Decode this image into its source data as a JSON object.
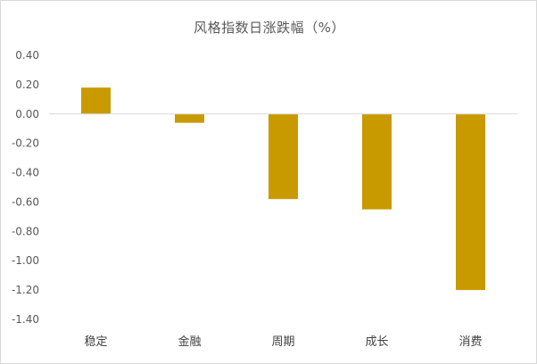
{
  "chart_data": {
    "type": "bar",
    "title": "风格指数日涨跌幅（%）",
    "xlabel": "",
    "ylabel": "",
    "categories": [
      "稳定",
      "金融",
      "周期",
      "成长",
      "消费"
    ],
    "values": [
      0.18,
      -0.06,
      -0.58,
      -0.65,
      -1.2
    ],
    "ylim": [
      -1.4,
      0.4
    ],
    "yticks": [
      "0.40",
      "0.20",
      "0.00",
      "-0.20",
      "-0.40",
      "-0.60",
      "-0.80",
      "-1.00",
      "-1.20",
      "-1.40"
    ],
    "grid": false,
    "legend": "none",
    "bar_color": "#c89a00",
    "axis_color": "#d9d9d9"
  }
}
